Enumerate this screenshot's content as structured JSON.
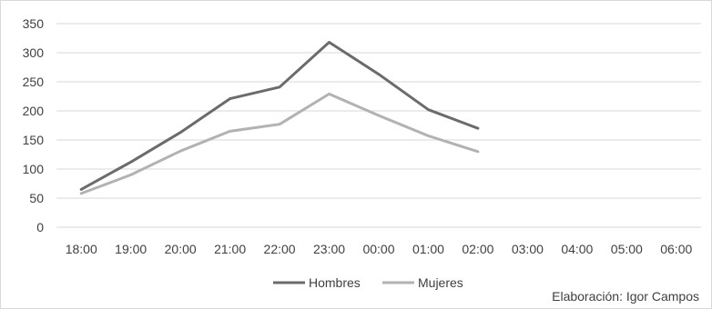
{
  "chart_data": {
    "type": "line",
    "x": [
      "18:00",
      "19:00",
      "20:00",
      "21:00",
      "22:00",
      "23:00",
      "00:00",
      "01:00",
      "02:00",
      "03:00",
      "04:00",
      "05:00",
      "06:00"
    ],
    "ylim": [
      0,
      350
    ],
    "yticks": [
      0,
      50,
      100,
      150,
      200,
      250,
      300,
      350
    ],
    "grid": true,
    "legend": "bottom-center",
    "series": [
      {
        "name": "Hombres",
        "color": "#6b6b6b",
        "values": [
          65,
          112,
          163,
          221,
          241,
          318,
          263,
          202,
          170,
          null,
          null,
          null,
          null
        ]
      },
      {
        "name": "Mujeres",
        "color": "#b2b2b2",
        "values": [
          58,
          90,
          131,
          165,
          177,
          229,
          192,
          157,
          130,
          null,
          null,
          null,
          null
        ]
      }
    ],
    "credit": "Elaboración: Igor Campos"
  }
}
